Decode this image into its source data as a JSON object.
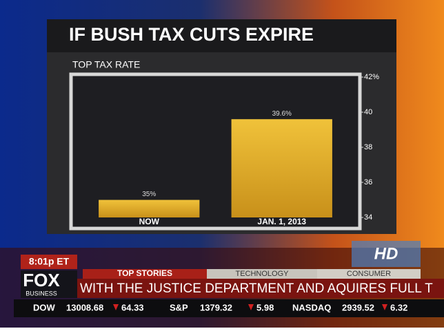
{
  "chart_data": {
    "type": "bar",
    "title": "IF BUSH TAX CUTS EXPIRE",
    "subtitle": "TOP TAX RATE",
    "categories": [
      "NOW",
      "JAN. 1, 2013"
    ],
    "values": [
      35,
      39.6
    ],
    "value_labels": [
      "35%",
      "39.6%"
    ],
    "color": "#d9a61e",
    "ylim": [
      34,
      42
    ],
    "yticks": [
      34,
      36,
      38,
      40,
      {
        "value": 42,
        "label": "42%"
      }
    ]
  },
  "broadcast": {
    "time": "8:01p ET",
    "logo": "FOX",
    "logo_sub": "BUSINESS",
    "badge": "HD",
    "tabs": [
      "TOP STORIES",
      "TECHNOLOGY",
      "CONSUMER"
    ],
    "crawl": "WITH THE JUSTICE DEPARTMENT AND AQUIRES FULL T",
    "stocks": [
      {
        "name": "DOW",
        "value": 13008.68,
        "change": 64.33
      },
      {
        "name": "S&P",
        "value": 1379.32,
        "change": 5.98
      },
      {
        "name": "NASDAQ",
        "value": 2939.52,
        "change": 6.32
      }
    ]
  }
}
